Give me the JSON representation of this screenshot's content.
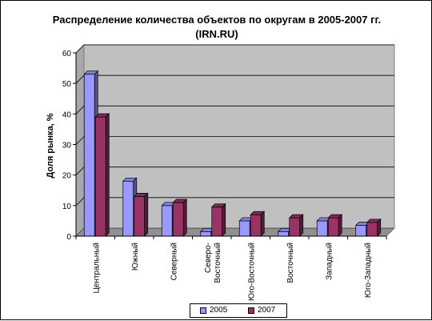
{
  "chart_data": {
    "type": "bar",
    "title": "Распределение количества объектов по округам в 2005-2007 гг.",
    "subtitle": "(IRN.RU)",
    "ylabel": "Доля рынка, %",
    "xlabel": "",
    "ylim": [
      0,
      60
    ],
    "yticks": [
      "0",
      "10",
      "20",
      "30",
      "40",
      "50",
      "60"
    ],
    "grid": true,
    "legend_position": "bottom",
    "three_d": true,
    "categories": [
      "Центральный",
      "Южный",
      "Северный",
      "Северо-Восточный",
      "Юго-Восточный",
      "Восточный",
      "Западный",
      "Юго-Западный"
    ],
    "category_lines": [
      [
        "Центральный"
      ],
      [
        "Южный"
      ],
      [
        "Северный"
      ],
      [
        "Северо-",
        "Восточный"
      ],
      [
        "Юго-Восточный"
      ],
      [
        "Восточный"
      ],
      [
        "Западный"
      ],
      [
        "Юго-Западный"
      ]
    ],
    "series": [
      {
        "name": "2005",
        "color": "#9999FF",
        "values": [
          53,
          18,
          10,
          1.5,
          5,
          1.5,
          5,
          3.5
        ]
      },
      {
        "name": "2007",
        "color": "#993366",
        "values": [
          39,
          13,
          11,
          9.5,
          7,
          6,
          6,
          4.5
        ]
      }
    ],
    "plot_background": "#C0C0C0"
  }
}
